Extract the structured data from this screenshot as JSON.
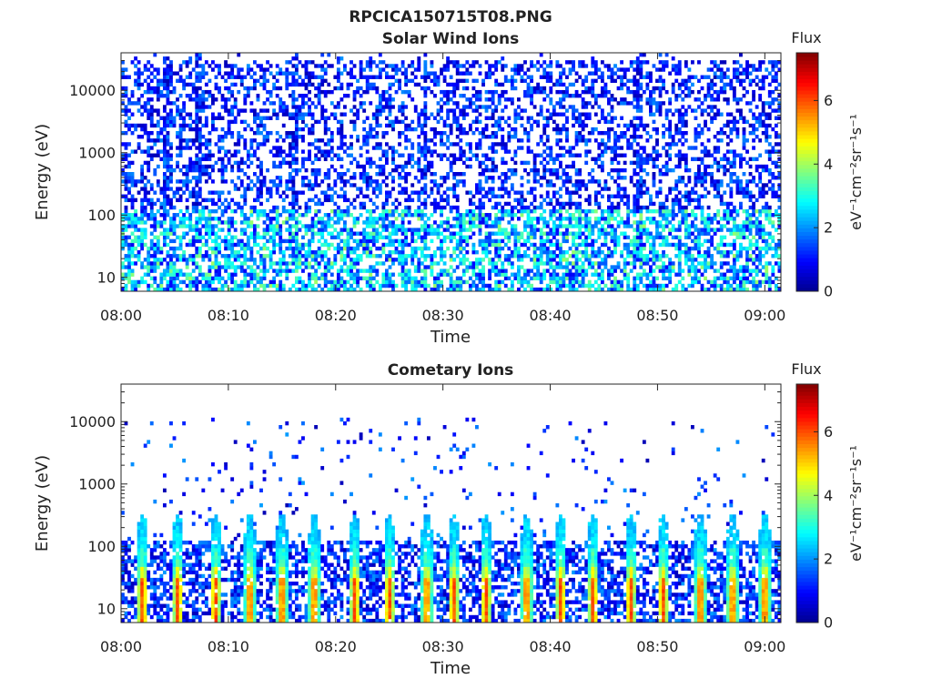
{
  "figure_title": "RPCICA150715T08.PNG",
  "colormap": [
    "#00008f",
    "#0000ff",
    "#0080ff",
    "#00ffff",
    "#80ff80",
    "#ffff00",
    "#ff8000",
    "#ff0000",
    "#800000"
  ],
  "chart_data": [
    {
      "type": "heatmap",
      "title": "Solar Wind Ions",
      "xlabel": "Time",
      "ylabel": "Energy (eV)",
      "x_ticks": [
        "08:00",
        "08:10",
        "08:20",
        "08:30",
        "08:40",
        "08:50",
        "09:00"
      ],
      "x_range_minutes": [
        0,
        61.5
      ],
      "y_scale": "log",
      "y_ticks": [
        {
          "value": 10,
          "label": "10"
        },
        {
          "value": 100,
          "label": "100"
        },
        {
          "value": 1000,
          "label": "1000"
        },
        {
          "value": 10000,
          "label": "10000"
        }
      ],
      "y_range": [
        6,
        40000
      ],
      "colorbar": {
        "title": "Flux",
        "label": "eV⁻¹cm⁻²sr⁻¹s⁻¹",
        "range": [
          0,
          7.5
        ],
        "ticks": [
          "0",
          "2",
          "4",
          "6"
        ]
      },
      "description_of_values": "Sparse scattered low flux (0-2) across 10-30000 eV; denser, slightly higher flux (2-3.5) below ~100 eV; vertical streaks near 08:04, 08:07, 08:16, 08:28, 08:48."
    },
    {
      "type": "heatmap",
      "title": "Cometary Ions",
      "xlabel": "Time",
      "ylabel": "Energy (eV)",
      "x_ticks": [
        "08:00",
        "08:10",
        "08:20",
        "08:30",
        "08:40",
        "08:50",
        "09:00"
      ],
      "x_range_minutes": [
        0,
        61.5
      ],
      "y_scale": "log",
      "y_ticks": [
        {
          "value": 10,
          "label": "10"
        },
        {
          "value": 100,
          "label": "100"
        },
        {
          "value": 1000,
          "label": "1000"
        },
        {
          "value": 10000,
          "label": "10000"
        }
      ],
      "y_range": [
        6,
        40000
      ],
      "colorbar": {
        "title": "Flux",
        "label": "eV⁻¹cm⁻²sr⁻¹s⁻¹",
        "range": [
          0,
          7.5
        ],
        "ticks": [
          "0",
          "2",
          "4",
          "6"
        ]
      },
      "bursts_minutes": [
        2,
        5.3,
        8.8,
        12,
        15,
        18,
        21.8,
        25,
        28.5,
        31,
        34,
        37.8,
        41,
        44,
        47.5,
        50.5,
        54,
        57,
        60
      ],
      "description_of_values": "Mostly empty above ~120 eV with sparse dots; dense low-energy band 6-120 eV; periodic high-flux bursts (4-6.5) at ~10-30 eV."
    }
  ]
}
